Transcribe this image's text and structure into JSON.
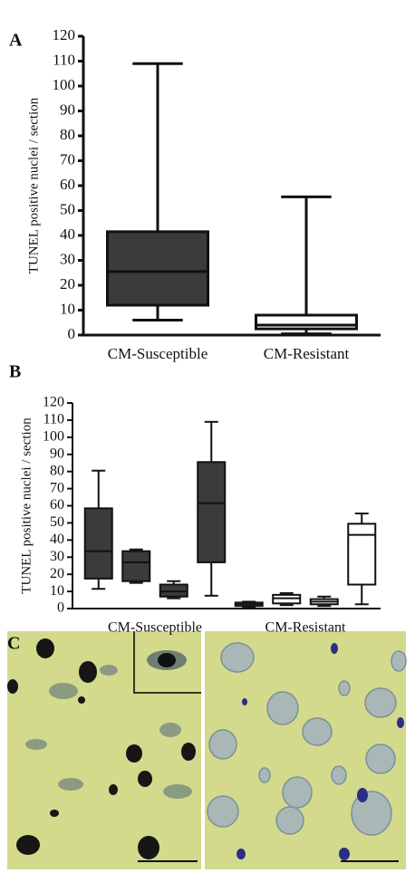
{
  "chart_data": [
    {
      "type": "box",
      "panel": "A",
      "ylabel": "TUNEL positive nuclei / section",
      "ylim": [
        0,
        120
      ],
      "yticks": [
        0,
        10,
        20,
        30,
        40,
        50,
        60,
        70,
        80,
        90,
        100,
        110,
        120
      ],
      "groups": [
        {
          "name": "CM-Susceptible",
          "color": "#3b3b3b",
          "boxes": [
            {
              "min": 6,
              "q1": 12,
              "median": 25.5,
              "q3": 41.5,
              "max": 109
            }
          ]
        },
        {
          "name": "CM-Resistant",
          "color": "#ffffff",
          "boxes": [
            {
              "min": 0.5,
              "q1": 2.5,
              "median": 4,
              "q3": 8,
              "max": 55.5
            }
          ]
        }
      ]
    },
    {
      "type": "box",
      "panel": "B",
      "ylabel": "TUNEL positive nuclei / section",
      "ylim": [
        0,
        120
      ],
      "yticks": [
        0,
        10,
        20,
        30,
        40,
        50,
        60,
        70,
        80,
        90,
        100,
        110,
        120
      ],
      "groups": [
        {
          "name": "CM-Susceptible",
          "color": "#3b3b3b",
          "boxes": [
            {
              "min": 11.5,
              "q1": 17.5,
              "median": 33.5,
              "q3": 58.5,
              "max": 80.5
            },
            {
              "min": 15,
              "q1": 16,
              "median": 27,
              "q3": 33.5,
              "max": 34.5
            },
            {
              "min": 6,
              "q1": 7,
              "median": 10,
              "q3": 14,
              "max": 16
            },
            {
              "min": 7.5,
              "q1": 27,
              "median": 61.5,
              "q3": 85.5,
              "max": 109
            }
          ]
        },
        {
          "name": "CM-Resistant",
          "color": "#ffffff",
          "boxes": [
            {
              "min": 0.5,
              "q1": 1.5,
              "median": 2.5,
              "q3": 3.5,
              "max": 4
            },
            {
              "min": 2,
              "q1": 3,
              "median": 6,
              "q3": 8,
              "max": 9
            },
            {
              "min": 1.5,
              "q1": 2.5,
              "median": 4,
              "q3": 5.5,
              "max": 7
            },
            {
              "min": 2.5,
              "q1": 14,
              "median": 43,
              "q3": 49.5,
              "max": 55.5
            }
          ]
        }
      ]
    }
  ],
  "panel_c": {
    "label": "C"
  }
}
